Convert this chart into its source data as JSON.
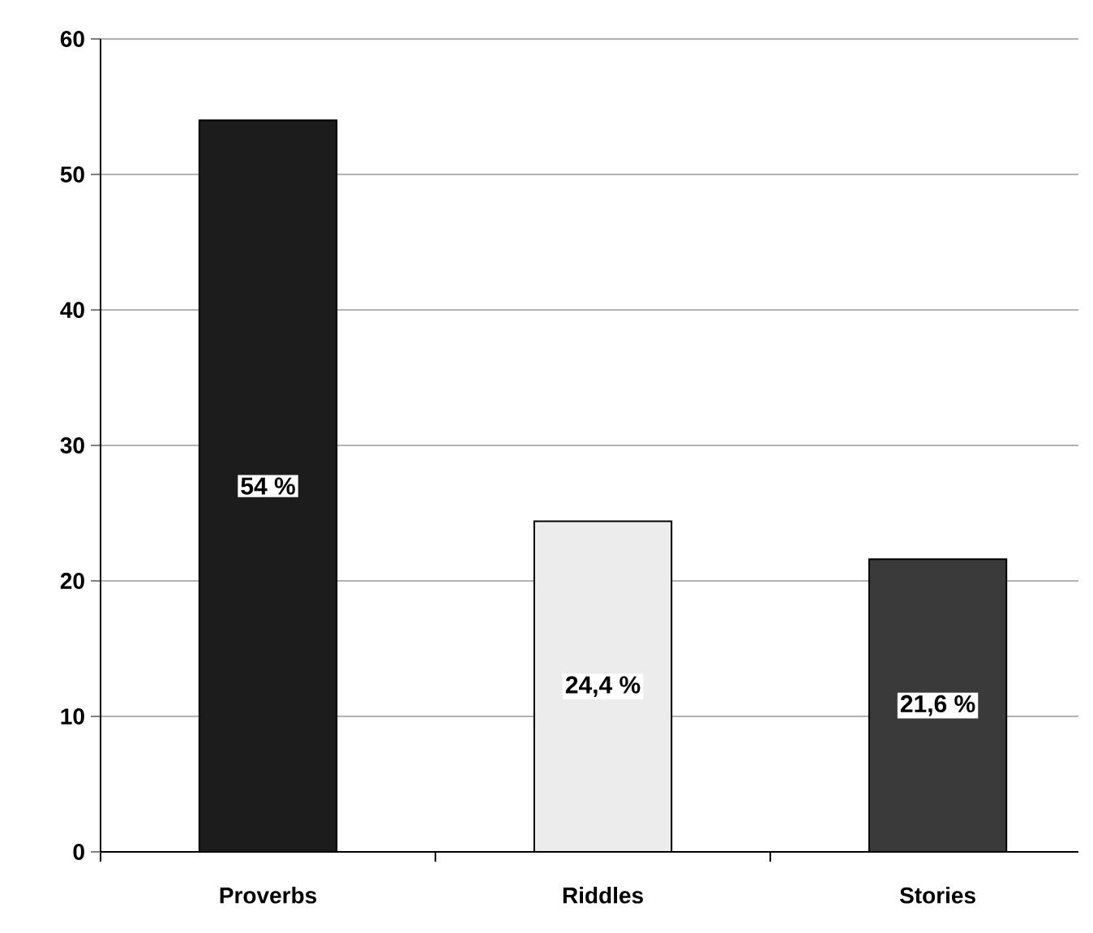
{
  "chart_data": {
    "type": "bar",
    "categories": [
      "Proverbs",
      "Riddles",
      "Stories"
    ],
    "values": [
      54,
      24.4,
      21.6
    ],
    "colors": [
      "#1c1c1c",
      "#ececec",
      "#3a3a3a"
    ],
    "value_labels": [
      "54 %",
      "24,4 %",
      "21,6 %"
    ],
    "ylim": [
      0,
      60
    ],
    "yticks": [
      0,
      10,
      20,
      30,
      40,
      50,
      60
    ],
    "grid": "y"
  }
}
